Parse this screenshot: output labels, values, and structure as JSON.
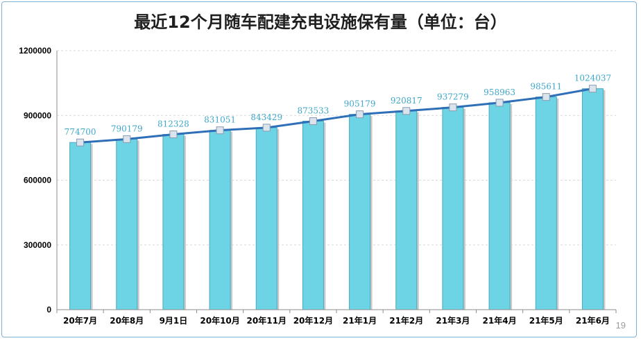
{
  "page": {
    "number": "19"
  },
  "chart_data": {
    "type": "bar",
    "title": "最近12个月随车配建充电设施保有量（单位：台）",
    "categories": [
      "20年7月",
      "20年8月",
      "9月1日",
      "20年10月",
      "20年11月",
      "20年12月",
      "21年1月",
      "21年2月",
      "21年3月",
      "21年4月",
      "21年5月",
      "21年6月"
    ],
    "series": [
      {
        "type": "bar",
        "values": [
          774700,
          790179,
          812328,
          831051,
          843429,
          873533,
          905179,
          920817,
          937279,
          958963,
          985611,
          1024037
        ]
      },
      {
        "type": "line",
        "values": [
          774700,
          790179,
          812328,
          831051,
          843429,
          873533,
          905179,
          920817,
          937279,
          958963,
          985611,
          1024037
        ]
      }
    ],
    "data_labels": [
      "774700",
      "790179",
      "812328",
      "831051",
      "843429",
      "873533",
      "905179",
      "920817",
      "937279",
      "958963",
      "985611",
      "1024037"
    ],
    "yticks": [
      "0",
      "300000",
      "600000",
      "900000",
      "1200000"
    ],
    "ylim": [
      0,
      1200000
    ],
    "grid": true,
    "legend": "none",
    "colors": {
      "bar": "#6cd4e4",
      "bar_edge": "#4aa9bf",
      "line": "#2f6fb8",
      "marker": "#dbe4ec",
      "label": "#3fa7c9"
    }
  }
}
